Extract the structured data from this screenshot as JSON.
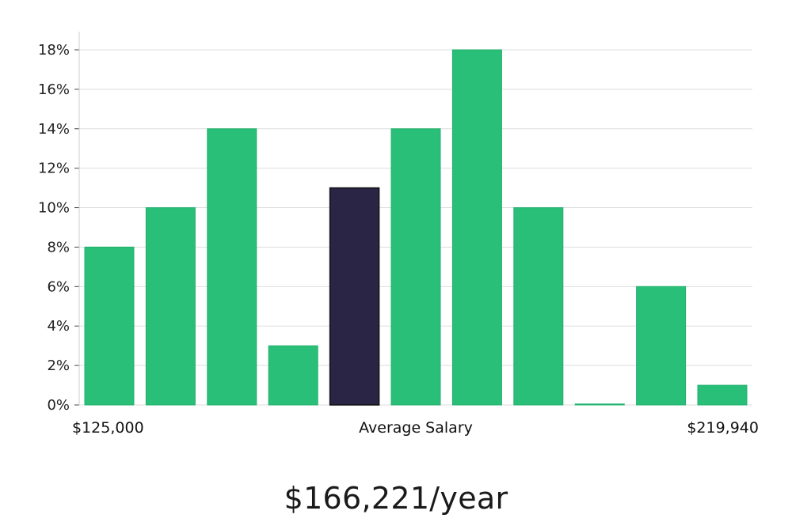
{
  "chart_data": {
    "type": "bar",
    "title": "",
    "xlabel": "Average Salary",
    "ylabel": "",
    "x_min_label": "$125,000",
    "x_max_label": "$219,940",
    "ylim": [
      0,
      18
    ],
    "yticks": [
      0,
      2,
      4,
      6,
      8,
      10,
      12,
      14,
      16,
      18
    ],
    "ytick_suffix": "%",
    "grid": true,
    "values": [
      8,
      10,
      14,
      3,
      11,
      14,
      18,
      10,
      0,
      6,
      1
    ],
    "highlight_index": 4,
    "colors": {
      "bar": "#2abf78",
      "highlight": "#2a2545",
      "grid": "#dddddd",
      "axis": "#cccccc"
    }
  },
  "summary": {
    "salary_text": "$166,221/year"
  }
}
